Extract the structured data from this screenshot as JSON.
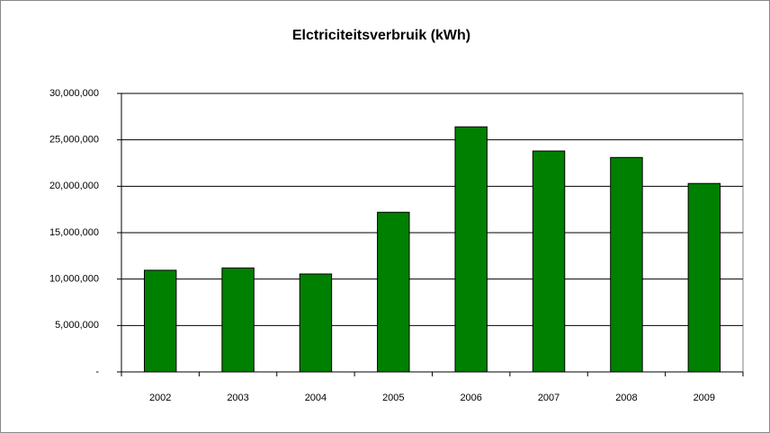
{
  "chart_data": {
    "type": "bar",
    "title": "Elctriciteitsverbruik (kWh)",
    "categories": [
      "2002",
      "2003",
      "2004",
      "2005",
      "2006",
      "2007",
      "2008",
      "2009"
    ],
    "values": [
      10950000,
      11200000,
      10550000,
      17200000,
      26400000,
      23800000,
      23100000,
      20300000
    ],
    "color": "#008000",
    "ylim": [
      0,
      30000000
    ],
    "yticks": [
      {
        "value": 0,
        "label": "-"
      },
      {
        "value": 5000000,
        "label": "5,000,000"
      },
      {
        "value": 10000000,
        "label": "10,000,000"
      },
      {
        "value": 15000000,
        "label": "15,000,000"
      },
      {
        "value": 20000000,
        "label": "20,000,000"
      },
      {
        "value": 25000000,
        "label": "25,000,000"
      },
      {
        "value": 30000000,
        "label": "30,000,000"
      }
    ],
    "grid": true
  }
}
